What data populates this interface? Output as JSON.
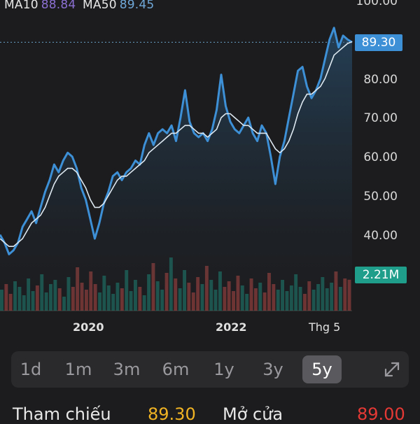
{
  "ma": {
    "ma10_label": "MA10",
    "ma10_value": "88.84",
    "ma50_label": "MA50",
    "ma50_value": "89.45",
    "ma10_color": "#8a6fd1",
    "ma50_color": "#6fa8d8"
  },
  "price_axis": {
    "ticks": [
      "100.00",
      "90.00",
      "80.00",
      "70.00",
      "60.00",
      "50.00",
      "40.00"
    ],
    "current_price": "89.30",
    "current_volume": "2.21M"
  },
  "time_axis": {
    "labels": [
      "2020",
      "2022",
      "Thg 5"
    ]
  },
  "range_selector": {
    "options": [
      "1d",
      "1m",
      "3m",
      "6m",
      "1y",
      "3y",
      "5y"
    ],
    "selected": "5y"
  },
  "stats": {
    "reference_label": "Tham chiếu",
    "reference_value": "89.30",
    "open_label": "Mở cửa",
    "open_value": "89.00"
  },
  "colors": {
    "price_line": "#3d8fd6",
    "ma_line": "#dde8f0",
    "volume_up": "#1f9e8c",
    "volume_down": "#d9534f",
    "reference": "#f0b323",
    "open": "#e53935"
  },
  "chart_data": {
    "type": "area",
    "x_labels": [
      "2020",
      "2022",
      "Thg 5"
    ],
    "ylim": [
      35,
      100
    ],
    "y_ticks": [
      40,
      50,
      60,
      70,
      80,
      90,
      100
    ],
    "last_price": 89.3,
    "series": [
      {
        "name": "",
        "values": [
          40,
          38,
          35,
          36,
          38,
          42,
          44,
          46,
          43,
          47,
          51,
          54,
          58,
          56,
          59,
          61,
          60,
          57,
          52,
          49,
          44,
          39,
          43,
          48,
          51,
          55,
          56,
          54,
          56,
          57,
          59,
          58,
          63,
          66,
          63,
          66,
          67,
          66,
          68,
          64,
          70,
          77,
          69,
          66,
          65,
          66,
          64,
          67,
          72,
          81,
          73,
          69,
          67,
          66,
          68,
          70,
          66,
          64,
          68,
          66,
          60,
          53,
          60,
          64,
          70,
          76,
          82,
          83,
          78,
          75,
          77,
          80,
          85,
          90,
          93,
          88,
          91,
          90,
          89.3
        ]
      },
      {
        "name": "",
        "values": [
          39,
          38,
          37,
          37,
          38,
          39,
          41,
          43,
          44,
          45,
          47,
          50,
          53,
          55,
          56,
          57,
          57,
          56,
          54,
          52,
          49,
          47,
          47,
          48,
          50,
          52,
          54,
          55,
          55,
          56,
          57,
          58,
          59,
          61,
          62,
          63,
          64,
          65,
          66,
          66,
          67,
          68,
          68,
          67,
          66,
          66,
          65,
          66,
          67,
          70,
          71,
          71,
          70,
          69,
          68,
          68,
          67,
          66,
          66,
          66,
          64,
          62,
          61,
          62,
          64,
          67,
          71,
          74,
          76,
          76,
          77,
          78,
          80,
          83,
          86,
          87,
          88,
          89,
          89.45
        ]
      }
    ],
    "volume": [
      1.5,
      1.9,
      1.2,
      2.1,
      1.7,
      1.1,
      2.3,
      1.4,
      1.8,
      2.6,
      1.3,
      1.9,
      2.2,
      1.6,
      1.0,
      2.4,
      1.7,
      3.1,
      2.0,
      1.5,
      2.8,
      1.9,
      1.3,
      2.5,
      1.8,
      1.2,
      2.0,
      1.6,
      2.9,
      1.4,
      2.2,
      1.7,
      1.1,
      2.6,
      3.4,
      2.1,
      1.5,
      2.7,
      3.8,
      2.3,
      1.6,
      2.9,
      2.0,
      1.3,
      2.4,
      1.9,
      3.2,
      2.2,
      1.5,
      2.8,
      1.7,
      2.1,
      1.4,
      2.5,
      1.8,
      1.2,
      2.3,
      1.6,
      2.0,
      1.3,
      2.7,
      1.9,
      1.5,
      2.2,
      1.4,
      1.8,
      2.6,
      1.7,
      1.2,
      2.1,
      1.5,
      1.9,
      2.4,
      1.6,
      2.0,
      2.8,
      1.7,
      2.3,
      2.21
    ]
  }
}
